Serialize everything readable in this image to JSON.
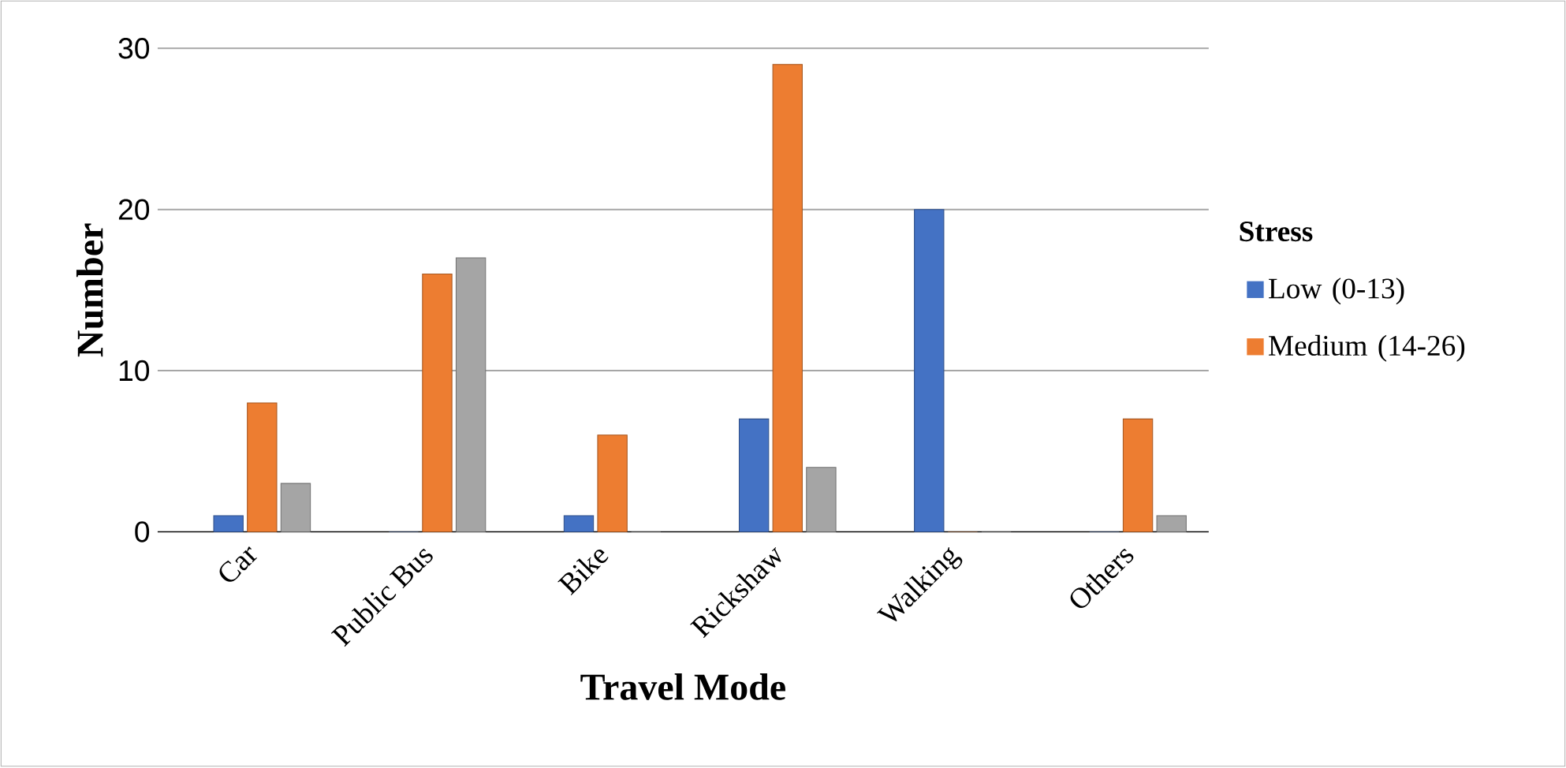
{
  "chart_data": {
    "type": "bar",
    "xlabel": "Travel Mode",
    "ylabel": "Number",
    "legend_title": "Stress",
    "categories": [
      "Car",
      "Public Bus",
      "Bike",
      "Rickshaw",
      "Walking",
      "Others"
    ],
    "series": [
      {
        "name": "Low (0-13)",
        "color": "#4472c4",
        "values": [
          1,
          0,
          1,
          7,
          20,
          0
        ]
      },
      {
        "name": "Medium (14-26)",
        "color": "#ed7d31",
        "values": [
          8,
          16,
          6,
          29,
          0,
          7
        ]
      },
      {
        "color": "#a5a5a5",
        "values": [
          3,
          17,
          0,
          4,
          0,
          1
        ]
      }
    ],
    "ylim": [
      0,
      30
    ],
    "yticks": [
      0,
      10,
      20,
      30
    ],
    "grid": "y",
    "legend": "right"
  }
}
